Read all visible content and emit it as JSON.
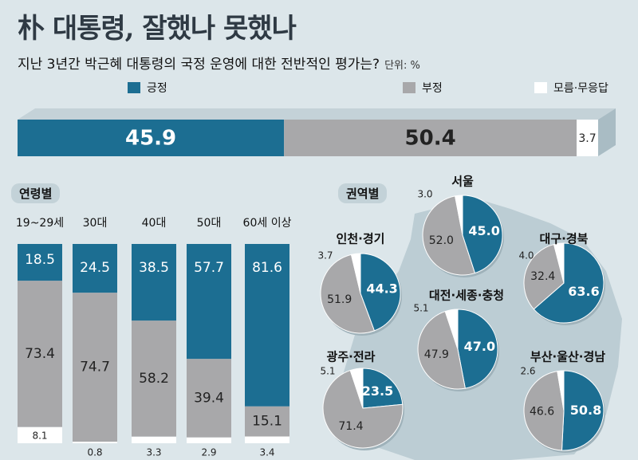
{
  "title": "朴 대통령, 잘했나 못했나",
  "subtitle": "지난 3년간 박근혜 대통령의 국정 운영에 대한 전반적인 평가는?",
  "unit": "단위: %",
  "colors": {
    "positive": "#1c6e92",
    "negative": "#a8a8aa",
    "unknown": "#ffffff",
    "background": "#dce6ea",
    "map": "#bccdd4"
  },
  "legend": [
    {
      "name": "긍정",
      "color": "#1c6e92"
    },
    {
      "name": "부정",
      "color": "#a8a8aa"
    },
    {
      "name": "모름·무응답",
      "color": "#ffffff"
    }
  ],
  "sections": {
    "age": "연령별",
    "region": "권역별"
  },
  "chart_data": [
    {
      "type": "bar",
      "orientation": "horizontal-stacked",
      "series": [
        {
          "name": "긍정",
          "values": [
            45.9
          ],
          "labels": [
            "45.9"
          ]
        },
        {
          "name": "부정",
          "values": [
            50.4
          ],
          "labels": [
            "50.4"
          ]
        },
        {
          "name": "모름·무응답",
          "values": [
            3.7
          ],
          "labels": [
            "3.7"
          ]
        }
      ]
    },
    {
      "type": "bar",
      "orientation": "vertical-stacked",
      "categories": [
        "19~29세",
        "30대",
        "40대",
        "50대",
        "60세 이상"
      ],
      "series": [
        {
          "name": "긍정",
          "values": [
            18.5,
            24.5,
            38.5,
            57.7,
            81.6
          ],
          "labels": [
            "18.5",
            "24.5",
            "38.5",
            "57.7",
            "81.6"
          ]
        },
        {
          "name": "부정",
          "values": [
            73.4,
            74.7,
            58.2,
            39.4,
            15.1
          ],
          "labels": [
            "73.4",
            "74.7",
            "58.2",
            "39.4",
            "15.1"
          ]
        },
        {
          "name": "모름·무응답",
          "values": [
            8.1,
            0.8,
            3.3,
            2.9,
            3.4
          ],
          "labels": [
            "8.1",
            "0.8",
            "3.3",
            "2.9",
            "3.4"
          ]
        }
      ]
    },
    {
      "type": "pie",
      "regions": [
        {
          "name": "서울",
          "positive": 45.0,
          "negative": 52.0,
          "unknown": 3.0,
          "labels": [
            "45.0",
            "52.0",
            "3.0"
          ]
        },
        {
          "name": "인천·경기",
          "positive": 44.3,
          "negative": 51.9,
          "unknown": 3.7,
          "labels": [
            "44.3",
            "51.9",
            "3.7"
          ]
        },
        {
          "name": "대구·경북",
          "positive": 63.6,
          "negative": 32.4,
          "unknown": 4.0,
          "labels": [
            "63.6",
            "32.4",
            "4.0"
          ]
        },
        {
          "name": "대전·세종·충청",
          "positive": 47.0,
          "negative": 47.9,
          "unknown": 5.1,
          "labels": [
            "47.0",
            "47.9",
            "5.1"
          ]
        },
        {
          "name": "광주·전라",
          "positive": 23.5,
          "negative": 71.4,
          "unknown": 5.1,
          "labels": [
            "23.5",
            "71.4",
            "5.1"
          ]
        },
        {
          "name": "부산·울산·경남",
          "positive": 50.8,
          "negative": 46.6,
          "unknown": 2.6,
          "labels": [
            "50.8",
            "46.6",
            "2.6"
          ]
        }
      ]
    }
  ]
}
